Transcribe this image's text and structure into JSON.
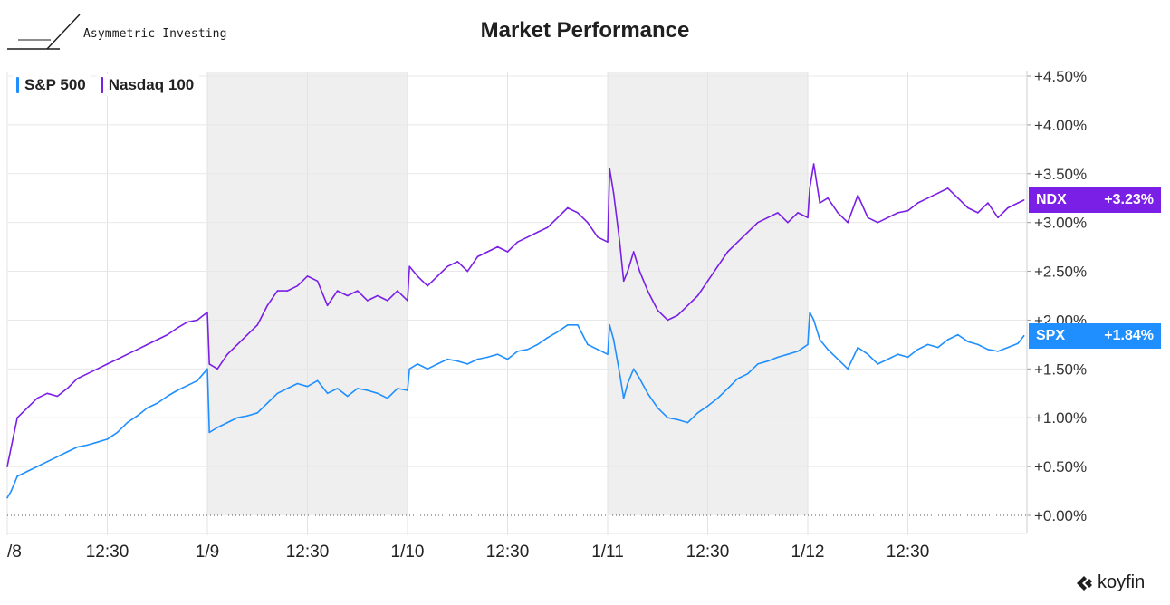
{
  "header": {
    "brand_text": "Asymmetric Investing",
    "title": "Market Performance"
  },
  "footer": {
    "brand": "koyfin"
  },
  "colors": {
    "spx": "#1f8fff",
    "ndx": "#7a1fe6",
    "shade": "#efefef"
  },
  "chart_data": {
    "type": "line",
    "title": "Market Performance",
    "xlabel": "",
    "ylabel": "",
    "x_ticks": [
      "/8",
      "12:30",
      "1/9",
      "12:30",
      "1/10",
      "12:30",
      "1/11",
      "12:30",
      "1/12",
      "12:30"
    ],
    "y_ticks": [
      "+4.50%",
      "+4.00%",
      "+3.50%",
      "+3.00%",
      "+2.50%",
      "+2.00%",
      "+1.50%",
      "+1.00%",
      "+0.50%",
      "+0.00%"
    ],
    "ylim": [
      0,
      4.5
    ],
    "x_range": [
      0,
      5.15
    ],
    "x_unit": "trading day index (0 = 1/8 open, 1 = 1/9 open)",
    "shaded_sessions": [
      [
        1,
        2
      ],
      [
        3,
        4
      ]
    ],
    "grid": true,
    "legend": "top-left",
    "series": [
      {
        "name": "S&P 500",
        "ticker": "SPX",
        "last_label": "+1.84%",
        "x": [
          0,
          0.02,
          0.05,
          0.1,
          0.15,
          0.2,
          0.25,
          0.3,
          0.35,
          0.4,
          0.45,
          0.5,
          0.55,
          0.6,
          0.65,
          0.7,
          0.75,
          0.8,
          0.85,
          0.9,
          0.95,
          1.0,
          1.01,
          1.05,
          1.1,
          1.15,
          1.2,
          1.25,
          1.3,
          1.35,
          1.4,
          1.45,
          1.5,
          1.55,
          1.6,
          1.65,
          1.7,
          1.75,
          1.8,
          1.85,
          1.9,
          1.95,
          2.0,
          2.01,
          2.05,
          2.1,
          2.15,
          2.2,
          2.25,
          2.3,
          2.35,
          2.4,
          2.45,
          2.5,
          2.55,
          2.6,
          2.65,
          2.7,
          2.75,
          2.8,
          2.85,
          2.9,
          2.95,
          3.0,
          3.01,
          3.03,
          3.06,
          3.08,
          3.1,
          3.13,
          3.16,
          3.2,
          3.25,
          3.3,
          3.35,
          3.4,
          3.45,
          3.5,
          3.55,
          3.6,
          3.65,
          3.7,
          3.75,
          3.8,
          3.85,
          3.9,
          3.95,
          4.0,
          4.01,
          4.03,
          4.06,
          4.1,
          4.15,
          4.2,
          4.25,
          4.3,
          4.35,
          4.4,
          4.45,
          4.5,
          4.55,
          4.6,
          4.65,
          4.7,
          4.75,
          4.8,
          4.85,
          4.9,
          4.95,
          5.0,
          5.05,
          5.08
        ],
        "values": [
          0.18,
          0.25,
          0.4,
          0.45,
          0.5,
          0.55,
          0.6,
          0.65,
          0.7,
          0.72,
          0.75,
          0.78,
          0.85,
          0.95,
          1.02,
          1.1,
          1.15,
          1.22,
          1.28,
          1.33,
          1.38,
          1.5,
          0.85,
          0.9,
          0.95,
          1.0,
          1.02,
          1.05,
          1.15,
          1.25,
          1.3,
          1.35,
          1.32,
          1.38,
          1.25,
          1.3,
          1.22,
          1.3,
          1.28,
          1.25,
          1.2,
          1.3,
          1.28,
          1.5,
          1.55,
          1.5,
          1.55,
          1.6,
          1.58,
          1.55,
          1.6,
          1.62,
          1.65,
          1.6,
          1.68,
          1.7,
          1.75,
          1.82,
          1.88,
          1.95,
          1.95,
          1.75,
          1.7,
          1.65,
          1.95,
          1.8,
          1.45,
          1.2,
          1.35,
          1.5,
          1.4,
          1.25,
          1.1,
          1.0,
          0.98,
          0.95,
          1.05,
          1.12,
          1.2,
          1.3,
          1.4,
          1.45,
          1.55,
          1.58,
          1.62,
          1.65,
          1.68,
          1.75,
          2.08,
          2.0,
          1.8,
          1.7,
          1.6,
          1.5,
          1.72,
          1.65,
          1.55,
          1.6,
          1.65,
          1.62,
          1.7,
          1.75,
          1.72,
          1.8,
          1.85,
          1.78,
          1.75,
          1.7,
          1.68,
          1.72,
          1.76,
          1.84
        ]
      },
      {
        "name": "Nasdaq 100",
        "ticker": "NDX",
        "last_label": "+3.23%",
        "x": [
          0,
          0.02,
          0.05,
          0.1,
          0.15,
          0.2,
          0.25,
          0.3,
          0.35,
          0.4,
          0.45,
          0.5,
          0.55,
          0.6,
          0.65,
          0.7,
          0.75,
          0.8,
          0.85,
          0.9,
          0.95,
          1.0,
          1.01,
          1.05,
          1.1,
          1.15,
          1.2,
          1.25,
          1.3,
          1.35,
          1.4,
          1.45,
          1.5,
          1.55,
          1.6,
          1.65,
          1.7,
          1.75,
          1.8,
          1.85,
          1.9,
          1.95,
          2.0,
          2.01,
          2.05,
          2.1,
          2.15,
          2.2,
          2.25,
          2.3,
          2.35,
          2.4,
          2.45,
          2.5,
          2.55,
          2.6,
          2.65,
          2.7,
          2.75,
          2.8,
          2.85,
          2.9,
          2.95,
          3.0,
          3.01,
          3.03,
          3.06,
          3.08,
          3.1,
          3.13,
          3.16,
          3.2,
          3.25,
          3.3,
          3.35,
          3.4,
          3.45,
          3.5,
          3.55,
          3.6,
          3.65,
          3.7,
          3.75,
          3.8,
          3.85,
          3.9,
          3.95,
          4.0,
          4.01,
          4.03,
          4.06,
          4.1,
          4.15,
          4.2,
          4.25,
          4.3,
          4.35,
          4.4,
          4.45,
          4.5,
          4.55,
          4.6,
          4.65,
          4.7,
          4.75,
          4.8,
          4.85,
          4.9,
          4.95,
          5.0,
          5.05,
          5.08
        ],
        "values": [
          0.5,
          0.7,
          1.0,
          1.1,
          1.2,
          1.25,
          1.22,
          1.3,
          1.4,
          1.45,
          1.5,
          1.55,
          1.6,
          1.65,
          1.7,
          1.75,
          1.8,
          1.85,
          1.92,
          1.98,
          2.0,
          2.08,
          1.55,
          1.5,
          1.65,
          1.75,
          1.85,
          1.95,
          2.15,
          2.3,
          2.3,
          2.35,
          2.45,
          2.4,
          2.15,
          2.3,
          2.25,
          2.3,
          2.2,
          2.25,
          2.2,
          2.3,
          2.2,
          2.55,
          2.45,
          2.35,
          2.45,
          2.55,
          2.6,
          2.5,
          2.65,
          2.7,
          2.75,
          2.7,
          2.8,
          2.85,
          2.9,
          2.95,
          3.05,
          3.15,
          3.1,
          3.0,
          2.85,
          2.8,
          3.55,
          3.3,
          2.8,
          2.4,
          2.5,
          2.7,
          2.5,
          2.3,
          2.1,
          2.0,
          2.05,
          2.15,
          2.25,
          2.4,
          2.55,
          2.7,
          2.8,
          2.9,
          3.0,
          3.05,
          3.1,
          3.0,
          3.1,
          3.05,
          3.35,
          3.6,
          3.2,
          3.25,
          3.1,
          3.0,
          3.28,
          3.05,
          3.0,
          3.05,
          3.1,
          3.12,
          3.2,
          3.25,
          3.3,
          3.35,
          3.25,
          3.15,
          3.1,
          3.2,
          3.05,
          3.15,
          3.2,
          3.23
        ]
      }
    ]
  }
}
